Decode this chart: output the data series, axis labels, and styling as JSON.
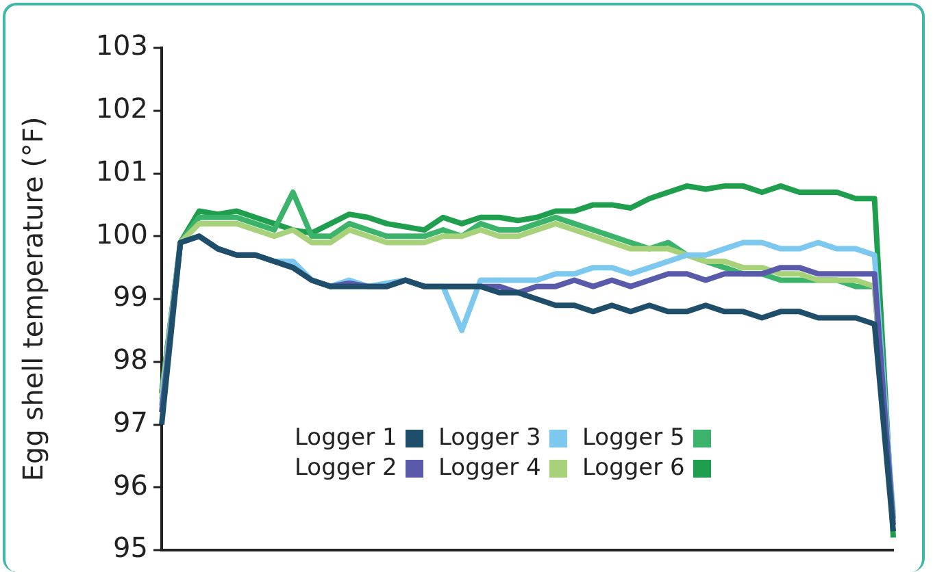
{
  "chart_data": {
    "type": "line",
    "ylabel": "Egg shell temperature (°F)",
    "categories": [
      null,
      null,
      null,
      null,
      null,
      null,
      null,
      null,
      null,
      null,
      null,
      null,
      null,
      null,
      null,
      null,
      null,
      null,
      null,
      null,
      null,
      null,
      null,
      null,
      null,
      null,
      null,
      null,
      null,
      null,
      null,
      null,
      null,
      null,
      null,
      null,
      null,
      null,
      null,
      null
    ],
    "series": [
      {
        "name": "Logger 1",
        "color": "#1f4e6b",
        "values": [
          97,
          99.9,
          100,
          99.8,
          99.7,
          99.7,
          99.6,
          99.5,
          99.3,
          99.2,
          99.2,
          99.2,
          99.2,
          99.3,
          99.2,
          99.2,
          99.2,
          99.2,
          99.1,
          99.1,
          99,
          98.9,
          98.9,
          98.8,
          98.9,
          98.8,
          98.9,
          98.8,
          98.8,
          98.9,
          98.8,
          98.8,
          98.7,
          98.8,
          98.8,
          98.7,
          98.7,
          98.7,
          98.6,
          95.3
        ]
      },
      {
        "name": "Logger 2",
        "color": "#5a5aab",
        "values": [
          97.2,
          99.9,
          100,
          99.8,
          99.7,
          99.7,
          99.6,
          99.5,
          99.3,
          99.2,
          99.25,
          99.2,
          99.2,
          99.3,
          99.2,
          99.2,
          99.2,
          99.2,
          99.2,
          99.1,
          99.2,
          99.2,
          99.3,
          99.2,
          99.3,
          99.2,
          99.3,
          99.4,
          99.4,
          99.3,
          99.4,
          99.4,
          99.4,
          99.5,
          99.5,
          99.4,
          99.4,
          99.4,
          99.4,
          95.4
        ]
      },
      {
        "name": "Logger 3",
        "color": "#7cc8ee",
        "values": [
          97.3,
          99.9,
          100,
          99.8,
          99.7,
          99.7,
          99.6,
          99.6,
          99.3,
          99.2,
          99.3,
          99.2,
          99.25,
          99.3,
          99.2,
          99.2,
          98.5,
          99.3,
          99.3,
          99.3,
          99.3,
          99.4,
          99.4,
          99.5,
          99.5,
          99.4,
          99.5,
          99.6,
          99.7,
          99.7,
          99.8,
          99.9,
          99.9,
          99.8,
          99.8,
          99.9,
          99.8,
          99.8,
          99.7,
          95.5
        ]
      },
      {
        "name": "Logger 4",
        "color": "#a8d27a",
        "values": [
          97.4,
          99.9,
          100.2,
          100.2,
          100.2,
          100.1,
          100,
          100.1,
          99.9,
          99.9,
          100.1,
          100,
          99.9,
          99.9,
          99.9,
          100,
          100,
          100.1,
          100,
          100,
          100.1,
          100.2,
          100.1,
          100,
          99.9,
          99.8,
          99.8,
          99.8,
          99.7,
          99.6,
          99.6,
          99.5,
          99.5,
          99.4,
          99.4,
          99.3,
          99.3,
          99.3,
          99.2,
          95.6
        ]
      },
      {
        "name": "Logger 5",
        "color": "#3cb36a",
        "values": [
          97.5,
          99.9,
          100.3,
          100.3,
          100.3,
          100.2,
          100.1,
          100.7,
          100,
          100,
          100.2,
          100.1,
          100,
          100,
          100,
          100.1,
          100,
          100.2,
          100.1,
          100.1,
          100.2,
          100.3,
          100.2,
          100.1,
          100,
          99.9,
          99.8,
          99.9,
          99.7,
          99.6,
          99.5,
          99.4,
          99.4,
          99.3,
          99.3,
          99.3,
          99.3,
          99.2,
          99.2,
          95.5
        ]
      },
      {
        "name": "Logger 6",
        "color": "#1f9e4d",
        "values": [
          97.5,
          99.9,
          100.4,
          100.35,
          100.4,
          100.3,
          100.2,
          100.1,
          100.05,
          100.2,
          100.35,
          100.3,
          100.2,
          100.15,
          100.1,
          100.3,
          100.2,
          100.3,
          100.3,
          100.25,
          100.3,
          100.4,
          100.4,
          100.5,
          100.5,
          100.45,
          100.6,
          100.7,
          100.8,
          100.75,
          100.8,
          100.8,
          100.7,
          100.8,
          100.7,
          100.7,
          100.7,
          100.6,
          100.6,
          95.2
        ]
      }
    ],
    "ylim": [
      95,
      103
    ],
    "yticks": [
      95,
      96,
      97,
      98,
      99,
      100,
      101,
      102,
      103
    ],
    "grid": false,
    "legend": "bottom",
    "tick_labels": "y"
  }
}
